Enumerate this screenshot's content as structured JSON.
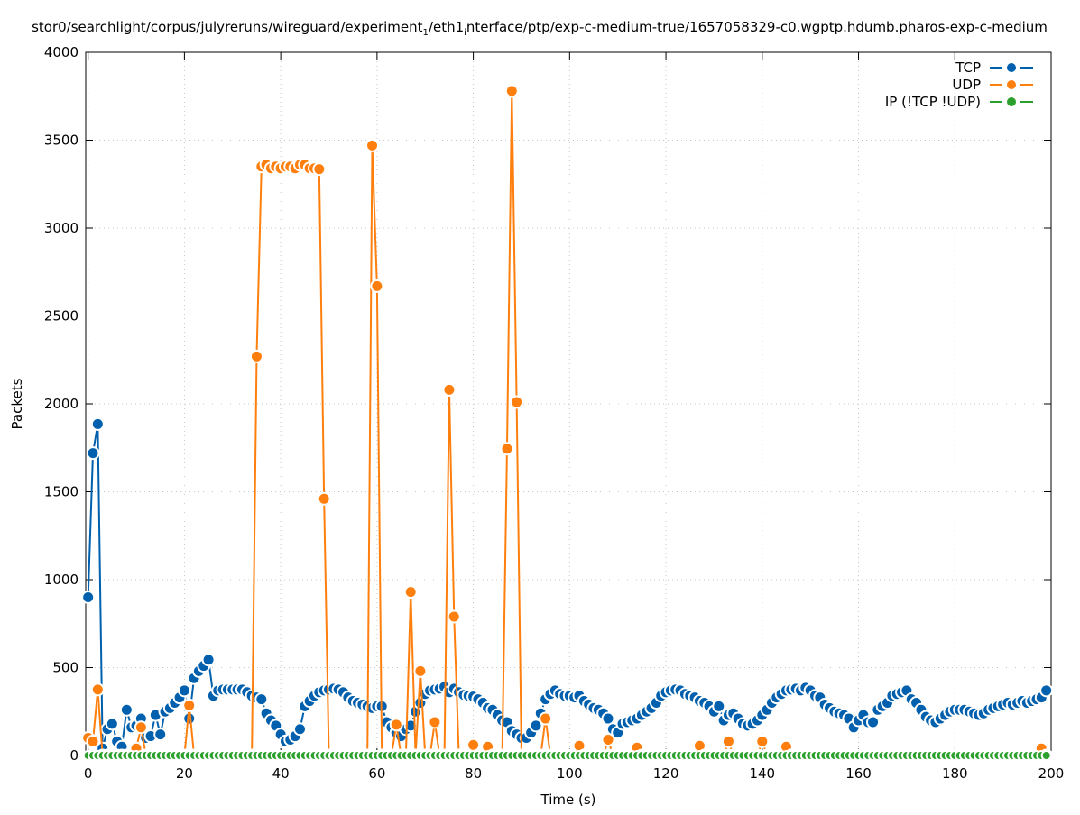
{
  "chart_data": {
    "type": "line",
    "title_parts": [
      "stor0/searchlight/corpus/julyreruns/wireguard/experiment",
      "1",
      "/eth1",
      "i",
      "nterface/ptp/exp-c-medium-true/1657058329-c0.wgptp.hdumb.pharos-exp-c-medium"
    ],
    "xlabel": "Time (s)",
    "ylabel": "Packets",
    "xlim": [
      -0.5,
      200
    ],
    "ylim": [
      0,
      4000
    ],
    "xticks": [
      0,
      20,
      40,
      60,
      80,
      100,
      120,
      140,
      160,
      180,
      200
    ],
    "yticks": [
      0,
      500,
      1000,
      1500,
      2000,
      2500,
      3000,
      3500,
      4000
    ],
    "xtick_labels": [
      "0",
      "20",
      "40",
      "60",
      "80",
      "100",
      "120",
      "140",
      "160",
      "180",
      "200"
    ],
    "ytick_labels": [
      "0",
      "500",
      "1000",
      "1500",
      "2000",
      "2500",
      "3000",
      "3500",
      "4000"
    ],
    "grid": true,
    "legend_position": "top-right",
    "x_start": 0,
    "x_step": 1,
    "series": [
      {
        "name": "TCP",
        "color": "#0060ad",
        "values": [
          900,
          1720,
          1885,
          40,
          150,
          180,
          80,
          50,
          260,
          160,
          170,
          210,
          100,
          110,
          230,
          120,
          250,
          270,
          300,
          330,
          370,
          210,
          440,
          480,
          510,
          545,
          340,
          370,
          375,
          375,
          375,
          375,
          375,
          360,
          340,
          330,
          320,
          240,
          200,
          170,
          120,
          80,
          90,
          110,
          150,
          280,
          310,
          340,
          360,
          370,
          375,
          380,
          375,
          360,
          330,
          310,
          300,
          290,
          280,
          270,
          280,
          280,
          190,
          160,
          130,
          110,
          150,
          170,
          250,
          300,
          350,
          370,
          375,
          380,
          390,
          360,
          380,
          360,
          345,
          340,
          335,
          320,
          300,
          270,
          260,
          230,
          200,
          190,
          140,
          120,
          100,
          100,
          130,
          170,
          240,
          320,
          350,
          370,
          350,
          340,
          340,
          330,
          340,
          310,
          290,
          270,
          260,
          240,
          210,
          150,
          130,
          180,
          190,
          200,
          210,
          230,
          250,
          270,
          300,
          340,
          360,
          370,
          375,
          370,
          350,
          340,
          330,
          310,
          300,
          280,
          250,
          280,
          200,
          230,
          240,
          210,
          180,
          170,
          180,
          200,
          230,
          260,
          300,
          330,
          350,
          370,
          375,
          380,
          370,
          385,
          370,
          340,
          330,
          290,
          270,
          250,
          240,
          230,
          210,
          160,
          200,
          230,
          190,
          190,
          260,
          280,
          300,
          340,
          350,
          360,
          370,
          320,
          300,
          260,
          220,
          200,
          190,
          210,
          230,
          250,
          260,
          260,
          260,
          250,
          240,
          230,
          240,
          260,
          270,
          280,
          290,
          300,
          290,
          300,
          310,
          300,
          310,
          320,
          330,
          370
        ]
      },
      {
        "name": "UDP",
        "color": "#ff7f0e",
        "count": 200,
        "default": 0,
        "points": [
          [
            0,
            100
          ],
          [
            1,
            80
          ],
          [
            2,
            375
          ],
          [
            10,
            40
          ],
          [
            11,
            160
          ],
          [
            21,
            285
          ],
          [
            35,
            2270
          ],
          [
            36,
            3350
          ],
          [
            37,
            3360
          ],
          [
            38,
            3340
          ],
          [
            39,
            3350
          ],
          [
            40,
            3340
          ],
          [
            41,
            3350
          ],
          [
            42,
            3350
          ],
          [
            43,
            3340
          ],
          [
            44,
            3360
          ],
          [
            45,
            3360
          ],
          [
            46,
            3340
          ],
          [
            47,
            3340
          ],
          [
            48,
            3335
          ],
          [
            49,
            1460
          ],
          [
            59,
            3470
          ],
          [
            60,
            2670
          ],
          [
            64,
            175
          ],
          [
            67,
            930
          ],
          [
            69,
            480
          ],
          [
            72,
            190
          ],
          [
            75,
            2080
          ],
          [
            76,
            790
          ],
          [
            80,
            60
          ],
          [
            83,
            50
          ],
          [
            87,
            1745
          ],
          [
            88,
            3780
          ],
          [
            89,
            2010
          ],
          [
            95,
            210
          ],
          [
            102,
            55
          ],
          [
            108,
            90
          ],
          [
            114,
            45
          ],
          [
            127,
            55
          ],
          [
            133,
            80
          ],
          [
            140,
            80
          ],
          [
            145,
            50
          ],
          [
            198,
            40
          ]
        ]
      },
      {
        "name": "IP (!TCP  !UDP)",
        "color": "#2ca02c",
        "count": 200,
        "default": 0,
        "points": []
      }
    ]
  }
}
